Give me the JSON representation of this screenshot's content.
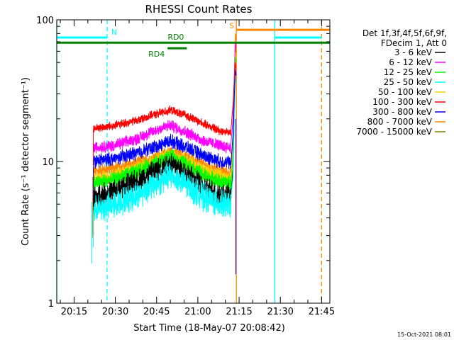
{
  "chart_data": {
    "type": "line",
    "title": "RHESSI Count Rates",
    "xlabel": "Start Time (18-May-07 20:08:42)",
    "ylabel": "Count Rate (s⁻¹ detector segment⁻¹)",
    "yscale": "log",
    "ylim": [
      1,
      100
    ],
    "xlim": [
      "20:08:42",
      "21:48:00"
    ],
    "x_ticks": [
      "20:15",
      "20:30",
      "20:45",
      "21:00",
      "21:15",
      "21:30",
      "21:45"
    ],
    "y_ticks": [
      "1",
      "10",
      "100"
    ],
    "footer_date": "15-Oct-2021 08:01",
    "legend": {
      "position": "right",
      "header": [
        "Det 1f,3f,4f,5f,6f,9f,",
        "FDecim 1, Att 0"
      ]
    },
    "series": [
      {
        "name": "3 - 6 keV",
        "color": "#000000",
        "shape": [
          5.5,
          6.2,
          7.2,
          8.8,
          9.8,
          8.0,
          6.5,
          5.8,
          5.6
        ]
      },
      {
        "name": "6 - 12 keV",
        "color": "#ff00ff",
        "shape": [
          12.5,
          13.0,
          14.5,
          17.0,
          18.0,
          16.0,
          14.0,
          13.0,
          12.5
        ]
      },
      {
        "name": "12 - 25 keV",
        "color": "#00ff00",
        "shape": [
          7.0,
          7.5,
          8.5,
          10.0,
          10.8,
          9.5,
          8.0,
          7.2,
          7.0
        ]
      },
      {
        "name": "25 - 50 keV",
        "color": "#00ffff",
        "shape": [
          4.5,
          5.0,
          5.8,
          7.2,
          8.0,
          6.8,
          5.6,
          5.0,
          4.9
        ]
      },
      {
        "name": "50 - 100 keV",
        "color": "#ffcc00",
        "shape": [
          7.5,
          8.0,
          9.0,
          10.5,
          11.2,
          10.0,
          8.8,
          8.0,
          7.5
        ]
      },
      {
        "name": "100 - 300 keV",
        "color": "#ff0000",
        "shape": [
          17.0,
          18.0,
          19.5,
          22.0,
          23.0,
          21.0,
          18.5,
          16.5,
          16.0
        ]
      },
      {
        "name": "300 - 800 keV",
        "color": "#0000ff",
        "shape": [
          10.0,
          10.5,
          11.5,
          13.0,
          14.0,
          12.5,
          11.0,
          10.0,
          9.8
        ]
      },
      {
        "name": "800 - 7000 keV",
        "color": "#ff8800",
        "shape": [
          8.5,
          9.0,
          9.8,
          11.0,
          11.8,
          10.8,
          9.5,
          8.6,
          8.3
        ]
      },
      {
        "name": "7000 - 15000 keV",
        "color": "#808000",
        "shape": [
          7.2,
          7.6,
          8.4,
          9.6,
          10.2,
          9.2,
          8.1,
          7.4,
          7.1
        ]
      }
    ],
    "data_interval": [
      "20:22",
      "21:12"
    ],
    "shape_x": [
      "20:22",
      "20:30",
      "20:38",
      "20:46",
      "20:50",
      "20:56",
      "21:02",
      "21:08",
      "21:12"
    ],
    "flags": [
      {
        "label": "N",
        "color": "#00ffff",
        "start": "20:08:42",
        "end": "20:27",
        "level": 75
      },
      {
        "label": "",
        "color": "#00ffff",
        "start": "21:28",
        "end": "21:45",
        "level": 75
      },
      {
        "label": "S",
        "color": "#ff8800",
        "start": "21:14",
        "end": "21:48",
        "level": 85
      },
      {
        "label": "RD0",
        "color": "#008000",
        "start": "20:08:42",
        "end": "21:48",
        "level": 69
      },
      {
        "label": "RD4",
        "color": "#008000",
        "start": "20:49",
        "end": "20:56",
        "level": 63
      }
    ],
    "vlines": [
      {
        "time": "20:08:42",
        "color": "#00ffff",
        "style": "solid"
      },
      {
        "time": "20:27",
        "color": "#00ffff",
        "style": "dashed"
      },
      {
        "time": "21:14",
        "color": "#ff8800",
        "style": "solid"
      },
      {
        "time": "21:28",
        "color": "#00ffff",
        "style": "solid"
      },
      {
        "time": "21:45",
        "color": "#00ffff",
        "style": "dashed"
      },
      {
        "time": "21:45",
        "color": "#ff8800",
        "style": "dashed"
      }
    ]
  }
}
